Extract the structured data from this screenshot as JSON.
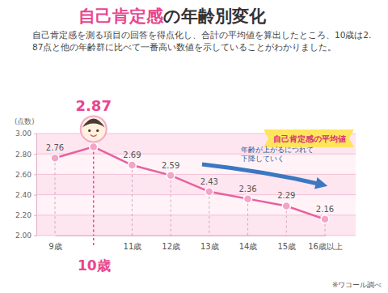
{
  "chart_data": {
    "type": "line",
    "title": "自己肯定感の年齢別変化",
    "subtitle": "自己肯定感を測る項目の回答を得点化し、合計の平均値を算出したところ、10歳は2.87点と他の年齢群に比べて一番高い数値を示していることがわかりました。",
    "y_label": "(点数)",
    "categories": [
      "9歳",
      "10歳",
      "11歳",
      "12歳",
      "13歳",
      "14歳",
      "15歳",
      "16歳以上"
    ],
    "series": [
      {
        "name": "自己肯定感の平均値",
        "color": "#e8609e",
        "marker": "circle",
        "values": [
          2.76,
          2.87,
          2.69,
          2.59,
          2.43,
          2.36,
          2.29,
          2.16
        ]
      }
    ],
    "ylim": [
      2,
      3
    ],
    "yticks": [
      {
        "value": 2,
        "label": "2.00"
      },
      {
        "value": 2.2,
        "label": "2.20"
      },
      {
        "value": 2.4,
        "label": "2.40"
      },
      {
        "value": 2.6,
        "label": "2.60"
      },
      {
        "value": 2.8,
        "label": "2.80"
      },
      {
        "value": 3,
        "label": "3.00"
      }
    ],
    "grid": true,
    "legend": "top-right",
    "data_labels": true,
    "annotations": [
      "年齢が上がるにつれて下降していく",
      "※ワコール調べ"
    ]
  }
}
